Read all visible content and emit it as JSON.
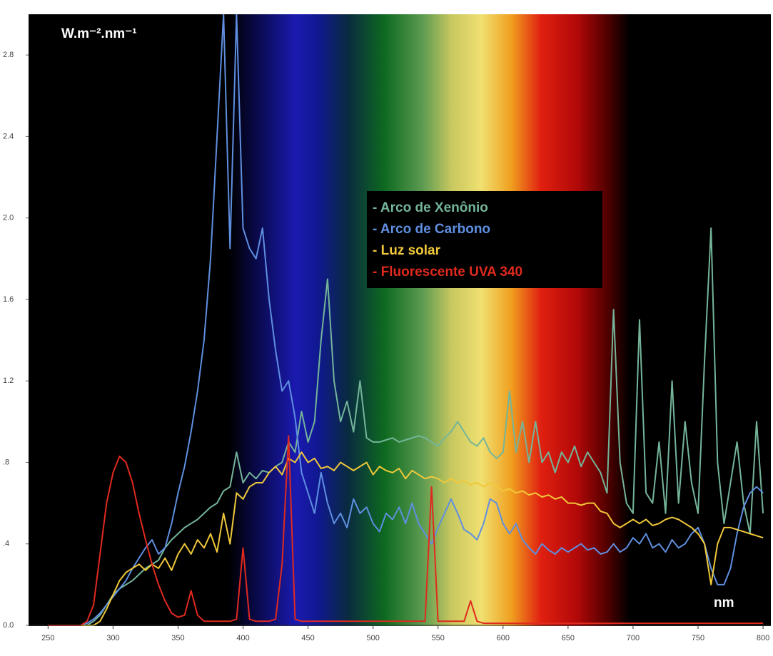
{
  "chart_data": {
    "type": "line",
    "y_label": "W.m⁻².nm⁻¹",
    "x_label": "nm",
    "xlim": [
      235,
      806
    ],
    "xticks": [
      250,
      300,
      350,
      400,
      450,
      500,
      550,
      600,
      650,
      700,
      750,
      800
    ],
    "ylim": [
      0,
      3.0
    ],
    "yticks": [
      {
        "value": 0,
        "label": "0.0"
      },
      {
        "value": 0.4,
        "label": ".4"
      },
      {
        "value": 0.8,
        "label": ".8"
      },
      1.2,
      1.6,
      {
        "value": 2.0,
        "label": "2.0"
      },
      2.4,
      2.8
    ],
    "x": [
      250,
      255,
      260,
      265,
      270,
      275,
      280,
      285,
      290,
      295,
      300,
      305,
      310,
      315,
      320,
      325,
      330,
      335,
      340,
      345,
      350,
      355,
      360,
      365,
      370,
      375,
      380,
      385,
      390,
      395,
      400,
      405,
      410,
      415,
      420,
      425,
      430,
      435,
      440,
      445,
      450,
      455,
      460,
      465,
      470,
      475,
      480,
      485,
      490,
      495,
      500,
      505,
      510,
      515,
      520,
      525,
      530,
      535,
      540,
      545,
      550,
      555,
      560,
      565,
      570,
      575,
      580,
      585,
      590,
      595,
      600,
      605,
      610,
      615,
      620,
      625,
      630,
      635,
      640,
      645,
      650,
      655,
      660,
      665,
      670,
      675,
      680,
      685,
      690,
      695,
      700,
      705,
      710,
      715,
      720,
      725,
      730,
      735,
      740,
      745,
      750,
      755,
      760,
      765,
      770,
      775,
      780,
      785,
      790,
      795,
      800
    ],
    "series": [
      {
        "name": "- Arco de Xenônio",
        "color": "#74b59a",
        "values": [
          0,
          0,
          0,
          0,
          0,
          0,
          0,
          0.02,
          0.05,
          0.1,
          0.15,
          0.18,
          0.2,
          0.22,
          0.25,
          0.28,
          0.3,
          0.32,
          0.38,
          0.42,
          0.45,
          0.48,
          0.5,
          0.52,
          0.55,
          0.58,
          0.6,
          0.66,
          0.68,
          0.85,
          0.7,
          0.75,
          0.72,
          0.76,
          0.75,
          0.78,
          0.8,
          0.9,
          0.85,
          1.05,
          0.9,
          1.0,
          1.4,
          1.7,
          1.2,
          1.0,
          1.1,
          0.95,
          1.2,
          0.92,
          0.9,
          0.9,
          0.91,
          0.92,
          0.9,
          0.91,
          0.92,
          0.93,
          0.92,
          0.9,
          0.88,
          0.92,
          0.95,
          1.0,
          0.95,
          0.9,
          0.88,
          0.92,
          0.85,
          0.82,
          0.85,
          1.15,
          0.85,
          1.0,
          0.8,
          1.0,
          0.8,
          0.85,
          0.75,
          0.85,
          0.8,
          0.88,
          0.78,
          0.85,
          0.8,
          0.75,
          0.65,
          1.55,
          0.8,
          0.6,
          0.55,
          1.5,
          0.65,
          0.6,
          0.9,
          0.55,
          1.2,
          0.6,
          1.0,
          0.7,
          0.55,
          1.3,
          1.95,
          0.8,
          0.5,
          0.7,
          0.9,
          0.6,
          0.45,
          1.0,
          0.55
        ]
      },
      {
        "name": "- Arco de Carbono",
        "color": "#5f8fe0",
        "values": [
          0,
          0,
          0,
          0,
          0,
          0,
          0.01,
          0.03,
          0.06,
          0.1,
          0.14,
          0.18,
          0.22,
          0.28,
          0.33,
          0.38,
          0.42,
          0.35,
          0.38,
          0.5,
          0.65,
          0.78,
          0.95,
          1.15,
          1.4,
          1.8,
          2.4,
          3.0,
          1.85,
          3.0,
          1.95,
          1.85,
          1.8,
          1.95,
          1.6,
          1.35,
          1.15,
          1.2,
          1.02,
          0.75,
          0.65,
          0.55,
          0.75,
          0.6,
          0.5,
          0.55,
          0.48,
          0.62,
          0.55,
          0.58,
          0.5,
          0.46,
          0.55,
          0.52,
          0.58,
          0.5,
          0.6,
          0.5,
          0.45,
          0.4,
          0.48,
          0.55,
          0.62,
          0.55,
          0.47,
          0.45,
          0.42,
          0.5,
          0.62,
          0.6,
          0.5,
          0.45,
          0.5,
          0.42,
          0.38,
          0.35,
          0.4,
          0.37,
          0.35,
          0.38,
          0.36,
          0.38,
          0.4,
          0.37,
          0.38,
          0.35,
          0.36,
          0.4,
          0.36,
          0.38,
          0.43,
          0.4,
          0.45,
          0.38,
          0.4,
          0.36,
          0.42,
          0.38,
          0.4,
          0.45,
          0.48,
          0.4,
          0.28,
          0.2,
          0.2,
          0.28,
          0.45,
          0.58,
          0.65,
          0.68,
          0.65
        ]
      },
      {
        "name": "- Luz solar",
        "color": "#f0c83a",
        "values": [
          0,
          0,
          0,
          0,
          0,
          0,
          0,
          0,
          0.02,
          0.08,
          0.15,
          0.22,
          0.26,
          0.28,
          0.3,
          0.27,
          0.3,
          0.28,
          0.33,
          0.27,
          0.35,
          0.4,
          0.35,
          0.42,
          0.38,
          0.45,
          0.36,
          0.55,
          0.4,
          0.65,
          0.62,
          0.68,
          0.7,
          0.7,
          0.75,
          0.78,
          0.74,
          0.82,
          0.8,
          0.85,
          0.8,
          0.82,
          0.77,
          0.78,
          0.76,
          0.8,
          0.78,
          0.76,
          0.78,
          0.8,
          0.74,
          0.78,
          0.76,
          0.75,
          0.77,
          0.72,
          0.76,
          0.74,
          0.72,
          0.73,
          0.72,
          0.7,
          0.72,
          0.7,
          0.71,
          0.69,
          0.7,
          0.68,
          0.7,
          0.68,
          0.66,
          0.67,
          0.65,
          0.66,
          0.64,
          0.65,
          0.63,
          0.64,
          0.62,
          0.63,
          0.6,
          0.6,
          0.59,
          0.6,
          0.6,
          0.56,
          0.55,
          0.5,
          0.48,
          0.5,
          0.52,
          0.5,
          0.52,
          0.49,
          0.5,
          0.52,
          0.53,
          0.52,
          0.5,
          0.48,
          0.45,
          0.4,
          0.2,
          0.4,
          0.48,
          0.48,
          0.47,
          0.46,
          0.45,
          0.44,
          0.43
        ]
      },
      {
        "name": "- Fluorescente UVA 340",
        "color": "#e02a1e",
        "values": [
          0,
          0,
          0,
          0,
          0,
          0,
          0.02,
          0.1,
          0.35,
          0.6,
          0.75,
          0.83,
          0.8,
          0.7,
          0.55,
          0.42,
          0.3,
          0.2,
          0.12,
          0.06,
          0.04,
          0.05,
          0.17,
          0.05,
          0.02,
          0.02,
          0.02,
          0.02,
          0.02,
          0.03,
          0.38,
          0.03,
          0.02,
          0.02,
          0.02,
          0.03,
          0.3,
          0.93,
          0.03,
          0.02,
          0.02,
          0.02,
          0.02,
          0.02,
          0.02,
          0.02,
          0.02,
          0.02,
          0.02,
          0.02,
          0.02,
          0.02,
          0.02,
          0.02,
          0.02,
          0.02,
          0.02,
          0.02,
          0.02,
          0.68,
          0.02,
          0.02,
          0.02,
          0.02,
          0.02,
          0.12,
          0.02,
          0.01,
          0.01,
          0.01,
          0.01,
          0.01,
          0.01,
          0.01,
          0.01,
          0.01,
          0.01,
          0.01,
          0.01,
          0.01,
          0.01,
          0.01,
          0.01,
          0.01,
          0.01,
          0.01,
          0.01,
          0.01,
          0.01,
          0.01,
          0.01,
          0.01,
          0.01,
          0.01,
          0.01,
          0.01,
          0.01,
          0.01,
          0.01,
          0.01,
          0.01,
          0.01,
          0.01,
          0.01,
          0.01,
          0.01,
          0.01,
          0.01,
          0.01,
          0.01,
          0.01
        ]
      }
    ]
  }
}
